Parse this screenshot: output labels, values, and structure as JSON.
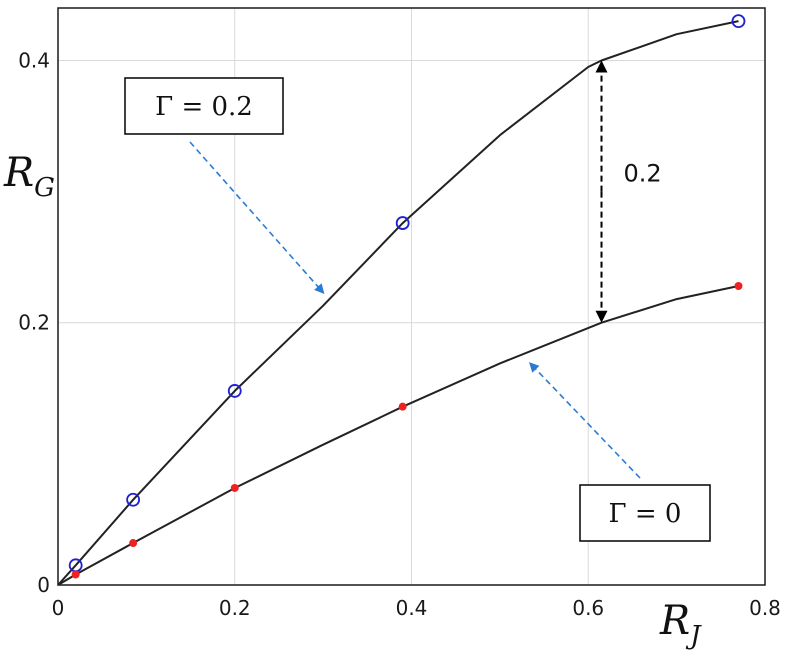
{
  "chart_data": {
    "type": "line",
    "title": "",
    "xlabel": "R",
    "xlabel_sub": "J",
    "ylabel": "R",
    "ylabel_sub": "G",
    "xlim": [
      0,
      0.8
    ],
    "ylim": [
      0,
      0.44
    ],
    "xticks": [
      "0",
      "0.2",
      "0.4",
      "0.6",
      "0.8"
    ],
    "yticks": [
      "0",
      "0.2",
      "0.4"
    ],
    "grid": true,
    "series": [
      {
        "name": "Γ = 0.2",
        "color": "#1f1fd6",
        "marker": "open-circle",
        "line_color": "#222222",
        "curve_x": [
          0,
          0.02,
          0.085,
          0.2,
          0.3,
          0.39,
          0.5,
          0.6,
          0.615,
          0.7,
          0.77
        ],
        "curve_y": [
          0,
          0.015,
          0.065,
          0.148,
          0.213,
          0.276,
          0.343,
          0.395,
          0.4,
          0.42,
          0.43
        ],
        "markers_x": [
          0.02,
          0.085,
          0.2,
          0.39,
          0.77
        ],
        "markers_y": [
          0.015,
          0.065,
          0.148,
          0.276,
          0.43
        ]
      },
      {
        "name": "Γ = 0",
        "color": "#ee2222",
        "marker": "filled-dot",
        "line_color": "#222222",
        "curve_x": [
          0,
          0.02,
          0.085,
          0.2,
          0.3,
          0.39,
          0.5,
          0.615,
          0.7,
          0.77
        ],
        "curve_y": [
          0,
          0.008,
          0.032,
          0.074,
          0.107,
          0.136,
          0.169,
          0.2,
          0.218,
          0.228
        ],
        "markers_x": [
          0.02,
          0.085,
          0.2,
          0.39,
          0.77
        ],
        "markers_y": [
          0.008,
          0.032,
          0.074,
          0.136,
          0.228
        ]
      }
    ],
    "annotations": [
      {
        "text": "Γ = 0.2",
        "arrow_to_series": "Γ = 0.2",
        "arrow_tip": [
          0.3,
          0.22
        ],
        "style": "dashed-blue"
      },
      {
        "text": "Γ = 0",
        "arrow_to_series": "Γ = 0",
        "arrow_tip": [
          0.53,
          0.175
        ],
        "style": "dashed-blue"
      },
      {
        "text": "0.2",
        "type": "double-arrow",
        "x": 0.615,
        "y_from": 0.2,
        "y_to": 0.4,
        "style": "dashed-black"
      }
    ]
  }
}
